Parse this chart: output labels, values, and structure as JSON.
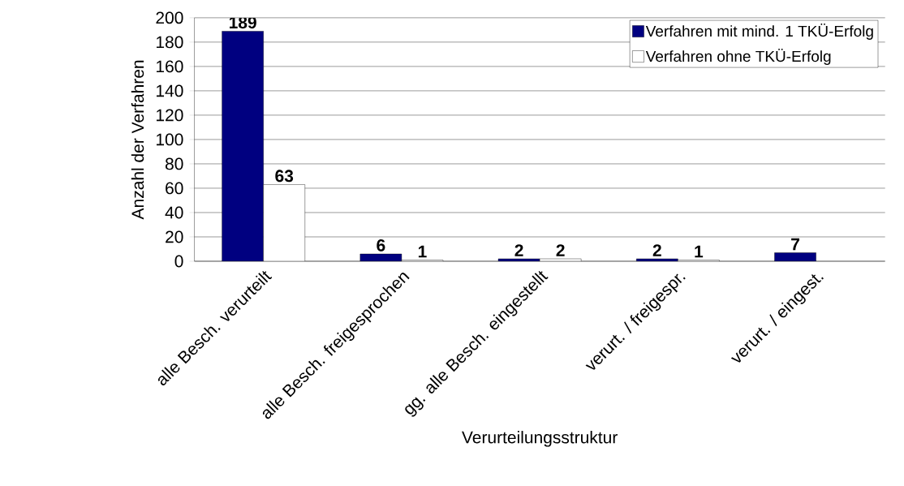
{
  "chart_data": {
    "type": "bar",
    "xlabel": "Verurteilungsstruktur",
    "ylabel": "Anzahl der Verfahren",
    "categories": [
      "alle Besch. verurteilt",
      "alle Besch. freigesprochen",
      "gg. alle Besch. eingestellt",
      "verurt. / freigespr.",
      "verurt. / eingest."
    ],
    "series": [
      {
        "name": "Verfahren mit mind. 1 TKÜ-Erfolg",
        "color": "#000080",
        "values": [
          189,
          6,
          2,
          2,
          7
        ]
      },
      {
        "name": "Verfahren ohne TKÜ-Erfolg",
        "color": "#ffffff",
        "values": [
          63,
          1,
          2,
          1,
          null
        ]
      }
    ],
    "ylim": [
      0,
      200
    ],
    "yticks": [
      0,
      20,
      40,
      60,
      80,
      100,
      120,
      140,
      160,
      180,
      200
    ],
    "grid": "y",
    "legend": "top right",
    "data_labels": true
  }
}
